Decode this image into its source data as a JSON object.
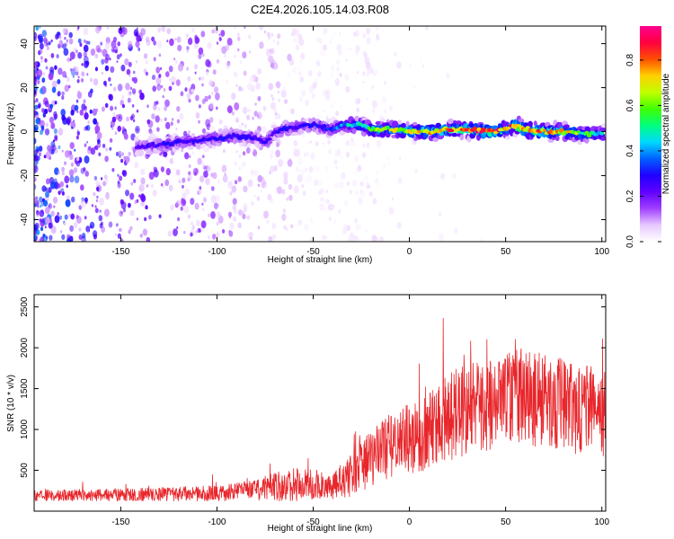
{
  "title": "C2E4.2026.105.14.03.R08",
  "chart_data": [
    {
      "type": "heatmap",
      "xlabel": "Height of straight line (km)",
      "ylabel": "Frequency (Hz)",
      "xlim": [
        -195,
        102
      ],
      "ylim": [
        -50,
        48
      ],
      "x_ticks": [
        -150,
        -100,
        -50,
        0,
        50,
        100
      ],
      "x_tick_labels": [
        "-150",
        "-100",
        "-50",
        "0",
        "50",
        "100"
      ],
      "y_ticks": [
        -40,
        -20,
        0,
        20,
        40
      ],
      "y_tick_labels": [
        "-40",
        "-20",
        "0",
        "20",
        "40"
      ],
      "colorbar": {
        "label": "Normalized spectral amplitude",
        "range": [
          0.0,
          0.95
        ],
        "ticks": [
          0.0,
          0.2,
          0.4,
          0.6,
          0.8
        ],
        "tick_labels": [
          "0.0",
          "0.2",
          "0.4",
          "0.6",
          "0.8"
        ],
        "colors": [
          "#ffffff",
          "#e8c8ff",
          "#a040ff",
          "#6000ff",
          "#2000ff",
          "#0060ff",
          "#00d8ff",
          "#00ff80",
          "#40ff00",
          "#c0ff00",
          "#ffd000",
          "#ff5000",
          "#ff0040",
          "#ff0090"
        ]
      },
      "ridge_centerline": {
        "x": [
          -140,
          -130,
          -120,
          -110,
          -100,
          -90,
          -80,
          -75,
          -70,
          -60,
          -50,
          -40,
          -35,
          -30,
          -25,
          -20,
          -10,
          0,
          10,
          20,
          30,
          40,
          50,
          55,
          60,
          70,
          80,
          90,
          100
        ],
        "freq_hz": [
          -7,
          -6,
          -5,
          -4,
          -3,
          -2,
          -3,
          -5,
          0,
          2,
          3,
          1,
          3,
          3,
          3,
          1,
          1,
          0,
          0,
          1,
          1,
          0,
          1,
          3,
          1,
          0,
          0,
          -1,
          -1
        ],
        "peak_amplitude": [
          0.25,
          0.3,
          0.3,
          0.3,
          0.3,
          0.3,
          0.28,
          0.28,
          0.3,
          0.3,
          0.3,
          0.35,
          0.45,
          0.5,
          0.55,
          0.6,
          0.7,
          0.75,
          0.8,
          0.85,
          0.9,
          0.9,
          0.85,
          0.9,
          0.85,
          0.85,
          0.8,
          0.6,
          0.5
        ]
      }
    },
    {
      "type": "line",
      "xlabel": "Height of straight line (km)",
      "ylabel": "SNR (10 * v/v)",
      "xlim": [
        -195,
        102
      ],
      "ylim": [
        0,
        2650
      ],
      "x_ticks": [
        -150,
        -100,
        -50,
        0,
        50,
        100
      ],
      "x_tick_labels": [
        "-150",
        "-100",
        "-50",
        "0",
        "50",
        "100"
      ],
      "y_ticks": [
        500,
        1000,
        1500,
        2000,
        2500
      ],
      "y_tick_labels": [
        "500",
        "1000",
        "1500",
        "2000",
        "2500"
      ],
      "series": [
        {
          "name": "SNR",
          "color": "#e8262b",
          "envelope_x": [
            -195,
            -150,
            -100,
            -80,
            -70,
            -60,
            -50,
            -40,
            -30,
            -20,
            -10,
            0,
            10,
            20,
            30,
            40,
            50,
            60,
            70,
            80,
            90,
            100
          ],
          "envelope_mean": [
            190,
            200,
            220,
            260,
            300,
            320,
            330,
            300,
            450,
            650,
            800,
            900,
            1000,
            1150,
            1250,
            1300,
            1350,
            1400,
            1350,
            1300,
            1250,
            1200
          ],
          "envelope_spread": [
            80,
            90,
            110,
            150,
            200,
            230,
            220,
            180,
            300,
            400,
            450,
            500,
            550,
            600,
            620,
            650,
            650,
            650,
            650,
            650,
            620,
            600
          ]
        }
      ]
    }
  ]
}
